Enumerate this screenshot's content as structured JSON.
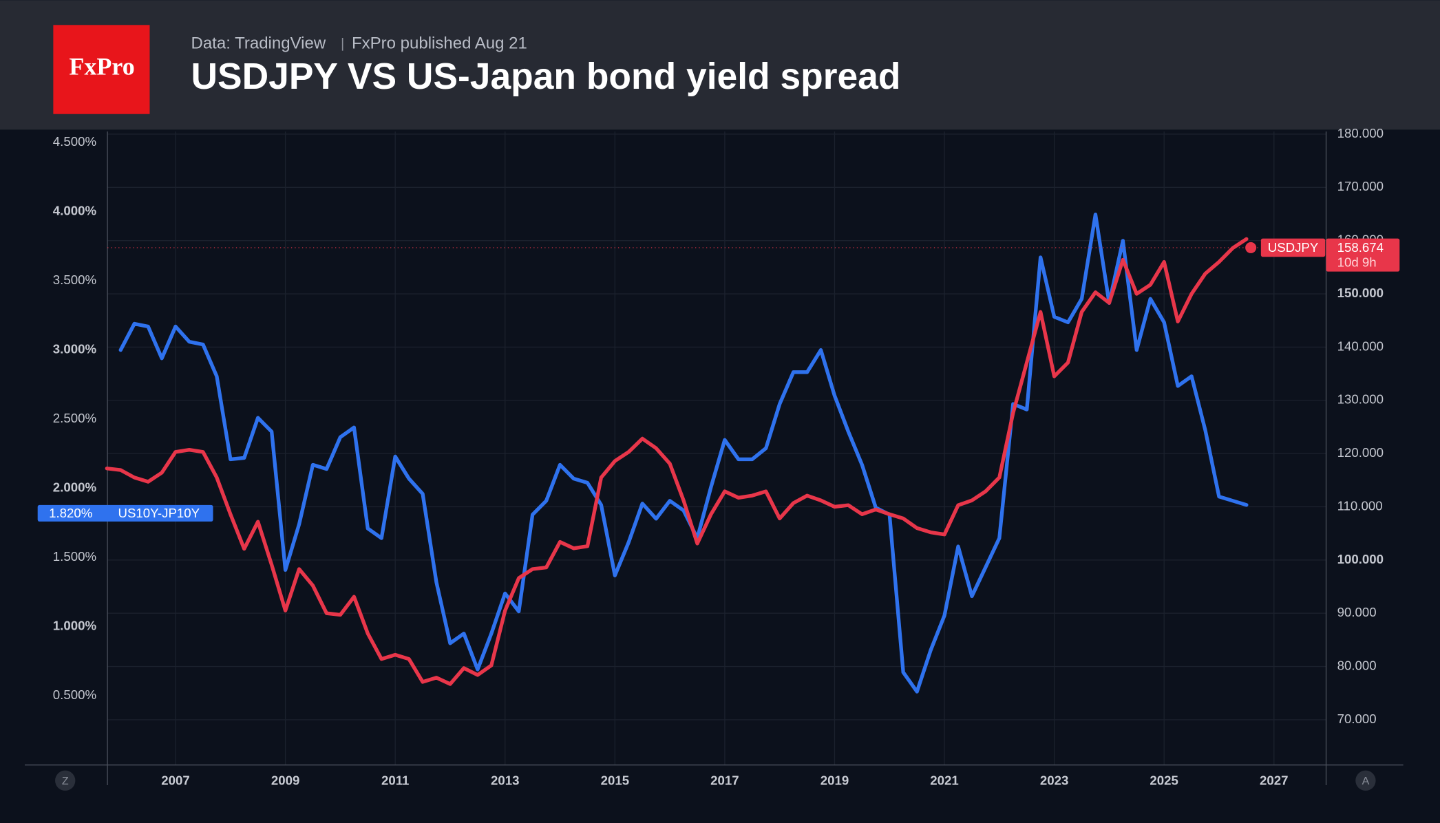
{
  "chart_data": {
    "type": "line",
    "logo": "FxPro",
    "source": "Data: TradingView",
    "publisher": "FxPro published Aug 21",
    "title": "USDJPY VS US-Japan bond yield spread",
    "x": [
      2005.75,
      2006,
      2006.25,
      2006.5,
      2006.75,
      2007,
      2007.25,
      2007.5,
      2007.75,
      2008,
      2008.25,
      2008.5,
      2008.75,
      2009,
      2009.25,
      2009.5,
      2009.75,
      2010,
      2010.25,
      2010.5,
      2010.75,
      2011,
      2011.25,
      2011.5,
      2011.75,
      2012,
      2012.25,
      2012.5,
      2012.75,
      2013,
      2013.25,
      2013.5,
      2013.75,
      2014,
      2014.25,
      2014.5,
      2014.75,
      2015,
      2015.25,
      2015.5,
      2015.75,
      2016,
      2016.25,
      2016.5,
      2016.75,
      2017,
      2017.25,
      2017.5,
      2017.75,
      2018,
      2018.25,
      2018.5,
      2018.75,
      2019,
      2019.25,
      2019.5,
      2019.75,
      2020,
      2020.25,
      2020.5,
      2020.75,
      2021,
      2021.25,
      2021.5,
      2021.75,
      2022,
      2022.25,
      2022.5,
      2022.75,
      2023,
      2023.25,
      2023.5,
      2023.75,
      2024,
      2024.25,
      2024.5,
      2024.75,
      2025,
      2025.25,
      2025.5,
      2025.75,
      2026,
      2026.25,
      2026.5
    ],
    "xlim": [
      2005.76,
      2027.95
    ],
    "xticks": [
      2007,
      2009,
      2011,
      2013,
      2015,
      2017,
      2019,
      2021,
      2023,
      2025,
      2027
    ],
    "ylim": [
      0,
      4.58
    ],
    "yticks": [
      {
        "value": 0.5,
        "label": "0.500%"
      },
      {
        "value": 1,
        "label": "1.000%"
      },
      {
        "value": 1.5,
        "label": "1.500%"
      },
      {
        "value": 2,
        "label": "2.000%"
      },
      {
        "value": 2.5,
        "label": "2.500%"
      },
      {
        "value": 3,
        "label": "3.000%"
      },
      {
        "value": 3.5,
        "label": "3.500%"
      },
      {
        "value": 4,
        "label": "4.000%"
      },
      {
        "value": 4.5,
        "label": "4.500%"
      }
    ],
    "y2lim": [
      61.5,
      180.5
    ],
    "y2ticks": [
      {
        "value": 70,
        "label": "70.000"
      },
      {
        "value": 80,
        "label": "80.000"
      },
      {
        "value": 90,
        "label": "90.000"
      },
      {
        "value": 100,
        "label": "100.000"
      },
      {
        "value": 110,
        "label": "110.000"
      },
      {
        "value": 120,
        "label": "120.000"
      },
      {
        "value": 130,
        "label": "130.000"
      },
      {
        "value": 140,
        "label": "140.000"
      },
      {
        "value": 150,
        "label": "150.000"
      },
      {
        "value": 160,
        "label": "160.000"
      },
      {
        "value": 170,
        "label": "170.000"
      },
      {
        "value": 180,
        "label": "180.000"
      }
    ],
    "grid": true,
    "series": [
      {
        "name": "US10Y-JP10Y",
        "color": "#2f72ee",
        "values": [
          null,
          3.0,
          3.19,
          3.17,
          2.94,
          3.17,
          3.06,
          3.04,
          2.81,
          2.21,
          2.22,
          2.51,
          2.41,
          1.41,
          1.74,
          2.17,
          2.14,
          2.37,
          2.44,
          1.71,
          1.64,
          2.23,
          2.07,
          1.96,
          1.32,
          0.88,
          0.95,
          0.69,
          0.95,
          1.24,
          1.11,
          1.81,
          1.91,
          2.17,
          2.07,
          2.04,
          1.88,
          1.37,
          1.61,
          1.89,
          1.78,
          1.91,
          1.84,
          1.64,
          2.01,
          2.35,
          2.21,
          2.21,
          2.29,
          2.61,
          2.84,
          2.84,
          3.0,
          2.67,
          2.41,
          2.17,
          1.86,
          1.81,
          0.67,
          0.53,
          0.83,
          1.08,
          1.58,
          1.22,
          1.43,
          1.64,
          2.61,
          2.57,
          3.67,
          3.24,
          3.2,
          3.37,
          3.98,
          3.34,
          3.79,
          3.0,
          3.37,
          3.2,
          2.74,
          2.81,
          2.42,
          1.94,
          1.91,
          1.88
        ],
        "last": {
          "value": 1.82,
          "label": "1.820%"
        }
      },
      {
        "name": "USDJPY",
        "color": "#e8364a",
        "axis": "y2",
        "values": [
          117.2,
          116.9,
          115.5,
          114.7,
          116.4,
          120.3,
          120.7,
          120.3,
          115.5,
          108.6,
          102.1,
          107.2,
          99.1,
          90.5,
          98.3,
          95.2,
          90.0,
          89.7,
          93.1,
          86.2,
          81.4,
          82.2,
          81.4,
          77.1,
          77.9,
          76.7,
          79.7,
          78.4,
          80.2,
          90.5,
          96.6,
          98.3,
          98.6,
          103.4,
          102.2,
          102.6,
          115.5,
          118.6,
          120.3,
          122.8,
          121.0,
          118.1,
          111.2,
          103.1,
          108.6,
          112.9,
          111.7,
          112.1,
          112.9,
          107.8,
          110.7,
          112.1,
          111.2,
          110.0,
          110.3,
          108.6,
          109.5,
          108.6,
          107.8,
          106.0,
          105.2,
          104.8,
          110.3,
          111.2,
          112.9,
          115.5,
          127.6,
          137.1,
          146.6,
          134.5,
          137.1,
          146.6,
          150.3,
          148.3,
          156.4,
          150.0,
          151.7,
          156.0,
          144.8,
          150.0,
          153.8,
          156.0,
          158.6,
          160.3
        ],
        "last": 158.674,
        "countdown": "10d 9h"
      }
    ],
    "buttons": [
      "Z",
      "A"
    ]
  }
}
